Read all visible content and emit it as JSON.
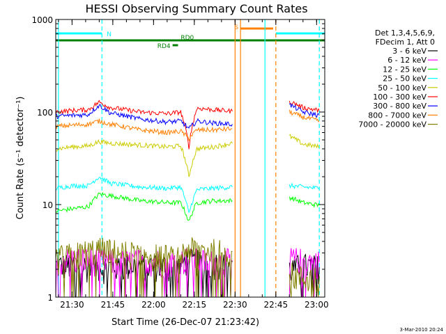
{
  "chart_data": {
    "type": "line",
    "title": "HESSI Observing Summary Count Rates",
    "xlabel": "Start Time (26-Dec-07 21:23:42)",
    "ylabel": "Count Rate (s⁻¹ detector⁻¹)",
    "footer": "3-Mar-2010 20:24",
    "y_scale": "log",
    "ylim": [
      1,
      1000
    ],
    "xlim_minutes": [
      21.4,
      23.05
    ],
    "xlim": [
      "21:24",
      "23:03"
    ],
    "x_ticks": [
      "21:30",
      "21:45",
      "22:00",
      "22:15",
      "22:30",
      "22:45",
      "23:00"
    ],
    "y_ticks": [
      "1",
      "10",
      "100",
      "1000"
    ],
    "grid": false,
    "legend_position": "right",
    "legend_header": [
      "Det 1,3,4,5,6,9,",
      "FDecim 1, Att 0"
    ],
    "series": [
      {
        "name": "3 - 6 keV",
        "color": "#000000",
        "segments": [
          {
            "x": [
              "21:24",
              "21:33",
              "21:42",
              "21:50",
              "22:00",
              "22:09",
              "22:12",
              "22:20",
              "22:29"
            ],
            "y": [
              2.2,
              2.2,
              2.1,
              2.2,
              2.2,
              2.1,
              2.5,
              2.3,
              2.4
            ]
          },
          {
            "x": [
              "22:50",
              "22:55",
              "23:01"
            ],
            "y": [
              2.0,
              2.2,
              2.1
            ]
          }
        ]
      },
      {
        "name": "6 - 12 keV",
        "color": "#ff00ff",
        "segments": [
          {
            "x": [
              "21:24",
              "21:33",
              "21:42",
              "21:50",
              "22:00",
              "22:09",
              "22:12",
              "22:20",
              "22:29"
            ],
            "y": [
              2.5,
              2.6,
              2.5,
              2.4,
              2.5,
              2.4,
              2.6,
              2.4,
              2.5
            ]
          },
          {
            "x": [
              "22:50",
              "22:55",
              "23:01"
            ],
            "y": [
              2.6,
              2.5,
              2.4
            ]
          }
        ]
      },
      {
        "name": "12 - 25 keV",
        "color": "#00ff00",
        "segments": [
          {
            "x": [
              "21:24",
              "21:30",
              "21:36",
              "21:40",
              "21:44",
              "21:55",
              "22:05",
              "22:10",
              "22:13",
              "22:16",
              "22:22",
              "22:29"
            ],
            "y": [
              8.5,
              9.0,
              9.5,
              13,
              12.5,
              11,
              10.5,
              10.5,
              6.5,
              10.5,
              11,
              11
            ]
          },
          {
            "x": [
              "22:50",
              "22:55",
              "23:01"
            ],
            "y": [
              12,
              10.5,
              9.8
            ]
          }
        ]
      },
      {
        "name": "25 - 50 keV",
        "color": "#00ffff",
        "segments": [
          {
            "x": [
              "21:24",
              "21:30",
              "21:36",
              "21:40",
              "21:44",
              "21:55",
              "22:05",
              "22:10",
              "22:13",
              "22:16",
              "22:22",
              "22:29"
            ],
            "y": [
              15,
              16,
              16,
              20,
              17,
              15.5,
              15,
              15.5,
              8.0,
              14.5,
              15,
              15.5
            ]
          },
          {
            "x": [
              "22:50",
              "22:55",
              "23:01"
            ],
            "y": [
              16,
              15.5,
              15
            ]
          }
        ]
      },
      {
        "name": "50 - 100 keV",
        "color": "#cccc00",
        "segments": [
          {
            "x": [
              "21:24",
              "21:30",
              "21:36",
              "21:40",
              "21:44",
              "21:55",
              "22:05",
              "22:10",
              "22:13",
              "22:16",
              "22:22",
              "22:29"
            ],
            "y": [
              40,
              42,
              43,
              48,
              46,
              44,
              42,
              43,
              20,
              40,
              42,
              46
            ]
          },
          {
            "x": [
              "22:50",
              "22:55",
              "23:01"
            ],
            "y": [
              55,
              45,
              42
            ]
          }
        ]
      },
      {
        "name": "100 - 300 keV",
        "color": "#ff0000",
        "segments": [
          {
            "x": [
              "21:24",
              "21:30",
              "21:36",
              "21:40",
              "21:44",
              "21:55",
              "22:05",
              "22:10",
              "22:13",
              "22:16",
              "22:22",
              "22:29"
            ],
            "y": [
              100,
              104,
              106,
              128,
              112,
              100,
              96,
              100,
              42,
              110,
              106,
              102
            ]
          },
          {
            "x": [
              "22:50",
              "22:55",
              "23:01"
            ],
            "y": [
              130,
              112,
              104
            ]
          }
        ]
      },
      {
        "name": "300 - 800 keV",
        "color": "#0000ff",
        "segments": [
          {
            "x": [
              "21:24",
              "21:30",
              "21:36",
              "21:40",
              "21:44",
              "21:55",
              "22:05",
              "22:10",
              "22:13",
              "22:16",
              "22:22",
              "22:29"
            ],
            "y": [
              90,
              92,
              94,
              118,
              98,
              84,
              78,
              80,
              66,
              80,
              76,
              74
            ]
          },
          {
            "x": [
              "22:50",
              "22:55",
              "23:01"
            ],
            "y": [
              120,
              100,
              92
            ]
          }
        ]
      },
      {
        "name": "800 - 7000 keV",
        "color": "#ff8000",
        "segments": [
          {
            "x": [
              "21:24",
              "21:30",
              "21:36",
              "21:40",
              "21:44",
              "21:55",
              "22:05",
              "22:10",
              "22:13",
              "22:16",
              "22:22",
              "22:29"
            ],
            "y": [
              70,
              72,
              74,
              80,
              74,
              64,
              60,
              62,
              52,
              64,
              64,
              66
            ]
          },
          {
            "x": [
              "22:50",
              "22:55",
              "23:01"
            ],
            "y": [
              100,
              88,
              80
            ]
          }
        ]
      },
      {
        "name": "7000 - 20000 keV",
        "color": "#808000",
        "segments": [
          {
            "x": [
              "21:24",
              "21:33",
              "21:40",
              "21:50",
              "22:00",
              "22:09",
              "22:12",
              "22:20",
              "22:29"
            ],
            "y": [
              2.6,
              3.0,
              3.3,
              3.0,
              2.9,
              2.6,
              3.3,
              3.2,
              3.1
            ]
          },
          {
            "x": [
              "22:50",
              "22:55",
              "23:01"
            ],
            "y": [
              1.8,
              1.6,
              1.7
            ]
          }
        ]
      }
    ],
    "flags": [
      {
        "label": "N",
        "color": "#00ffff",
        "segments": [
          {
            "start": "21:24",
            "end": "21:41"
          },
          {
            "start": "22:45",
            "end": "23:03"
          }
        ]
      },
      {
        "label": "S",
        "color": "#ff8000",
        "segments": [
          {
            "start": "22:32",
            "end": "22:44"
          }
        ]
      },
      {
        "label": "RD0",
        "color": "#008000",
        "segments": [
          {
            "start": "21:24",
            "end": "23:03"
          }
        ]
      },
      {
        "label": "RD4",
        "color": "#008000",
        "segments": [
          {
            "start": "22:07",
            "end": "22:09"
          }
        ]
      }
    ],
    "vertical_markers": [
      {
        "x": "21:25",
        "color": "#00ffff",
        "style": "solid"
      },
      {
        "x": "21:41",
        "color": "#00ffff",
        "style": "dashed"
      },
      {
        "x": "22:30",
        "color": "#ff8000",
        "style": "solid"
      },
      {
        "x": "22:32",
        "color": "#ff8000",
        "style": "solid"
      },
      {
        "x": "22:41",
        "color": "#00ffff",
        "style": "solid"
      },
      {
        "x": "22:45",
        "color": "#ff8000",
        "style": "dashed"
      },
      {
        "x": "23:01",
        "color": "#00ffff",
        "style": "dashed"
      }
    ]
  }
}
